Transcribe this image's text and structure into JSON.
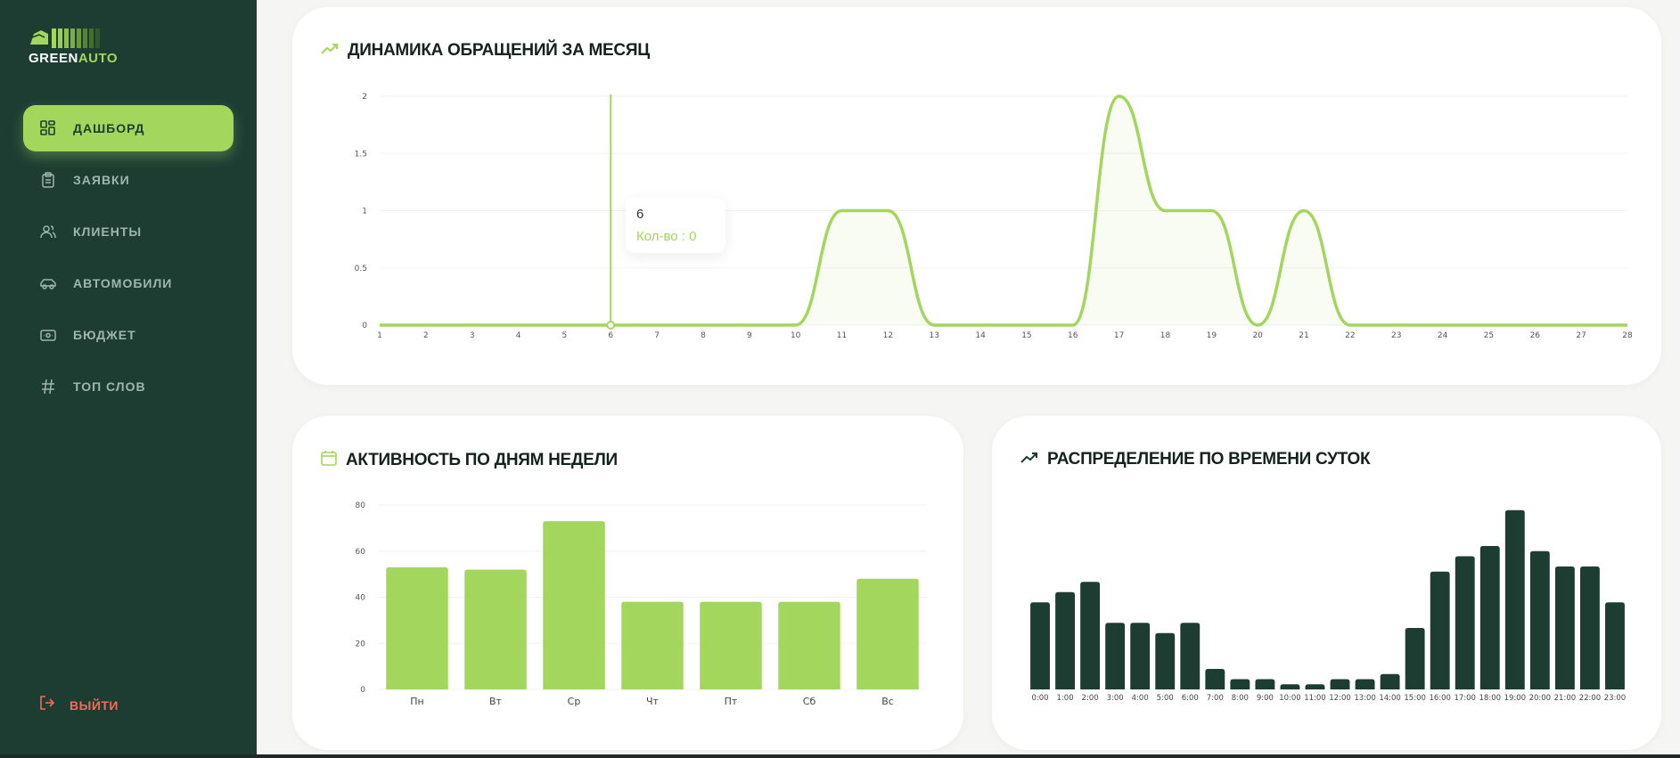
{
  "app": {
    "logo_part1": "GREEN",
    "logo_part2": "AUTO",
    "accent_color": "#a3d65c",
    "sidebar_color": "#1d3d33",
    "danger_color": "#f26b5b"
  },
  "sidebar": {
    "items": [
      {
        "label": "ДАШБОРД",
        "icon": "dashboard-grid-icon",
        "active": true
      },
      {
        "label": "ЗАЯВКИ",
        "icon": "clipboard-icon",
        "active": false
      },
      {
        "label": "КЛИЕНТЫ",
        "icon": "users-icon",
        "active": false
      },
      {
        "label": "АВТОМОБИЛИ",
        "icon": "car-icon",
        "active": false
      },
      {
        "label": "БЮДЖЕТ",
        "icon": "wallet-icon",
        "active": false
      },
      {
        "label": "ТОП СЛОВ",
        "icon": "hash-icon",
        "active": false
      }
    ],
    "logout_label": "ВЫЙТИ"
  },
  "cards": {
    "monthly": {
      "title": "ДИНАМИКА ОБРАЩЕНИЙ ЗА МЕСЯЦ",
      "icon": "trending-up-icon"
    },
    "weekly": {
      "title": "АКТИВНОСТЬ ПО ДНЯМ НЕДЕЛИ",
      "icon": "calendar-icon"
    },
    "hourly": {
      "title": "РАСПРЕДЕЛЕНИЕ ПО ВРЕМЕНИ СУТОК",
      "icon": "trending-up-icon"
    }
  },
  "tooltip": {
    "x_label": "6",
    "value_label": "Кол-во : 0"
  },
  "chart_data": [
    {
      "type": "area",
      "title": "ДИНАМИКА ОБРАЩЕНИЙ ЗА МЕСЯЦ",
      "x": [
        1,
        2,
        3,
        4,
        5,
        6,
        7,
        8,
        9,
        10,
        11,
        12,
        13,
        14,
        15,
        16,
        17,
        18,
        19,
        20,
        21,
        22,
        23,
        24,
        25,
        26,
        27,
        28
      ],
      "series": [
        {
          "values": [
            0,
            0,
            0,
            0,
            0,
            0,
            0,
            0,
            0,
            0,
            1,
            1,
            0,
            0,
            0,
            0,
            2,
            1,
            1,
            0,
            1,
            0,
            0,
            0,
            0,
            0,
            0,
            0
          ]
        }
      ],
      "yticks": [
        "0",
        "0.5",
        "1",
        "1.5",
        "2"
      ],
      "ylim": [
        0,
        2
      ],
      "hover_x": 6,
      "grid": false
    },
    {
      "type": "bar",
      "title": "АКТИВНОСТЬ ПО ДНЯМ НЕДЕЛИ",
      "categories": [
        "Пн",
        "Вт",
        "Ср",
        "Чт",
        "Пт",
        "Сб",
        "Вс"
      ],
      "values": [
        53,
        52,
        73,
        38,
        38,
        38,
        48
      ],
      "yticks": [
        "0",
        "20",
        "40",
        "60",
        "80"
      ],
      "ylim": [
        0,
        80
      ],
      "color": "#a3d65c"
    },
    {
      "type": "bar",
      "title": "РАСПРЕДЕЛЕНИЕ ПО ВРЕМЕНИ СУТОК",
      "categories": [
        "0:00",
        "1:00",
        "2:00",
        "3:00",
        "4:00",
        "5:00",
        "6:00",
        "7:00",
        "8:00",
        "9:00",
        "10:00",
        "11:00",
        "12:00",
        "13:00",
        "14:00",
        "15:00",
        "16:00",
        "17:00",
        "18:00",
        "19:00",
        "20:00",
        "21:00",
        "22:00",
        "23:00"
      ],
      "values": [
        17,
        19,
        21,
        13,
        13,
        11,
        13,
        4,
        2,
        2,
        1,
        1,
        2,
        2,
        3,
        12,
        23,
        26,
        28,
        35,
        27,
        24,
        24,
        17
      ],
      "ylim": [
        0,
        36
      ],
      "color": "#1d3d33"
    }
  ]
}
